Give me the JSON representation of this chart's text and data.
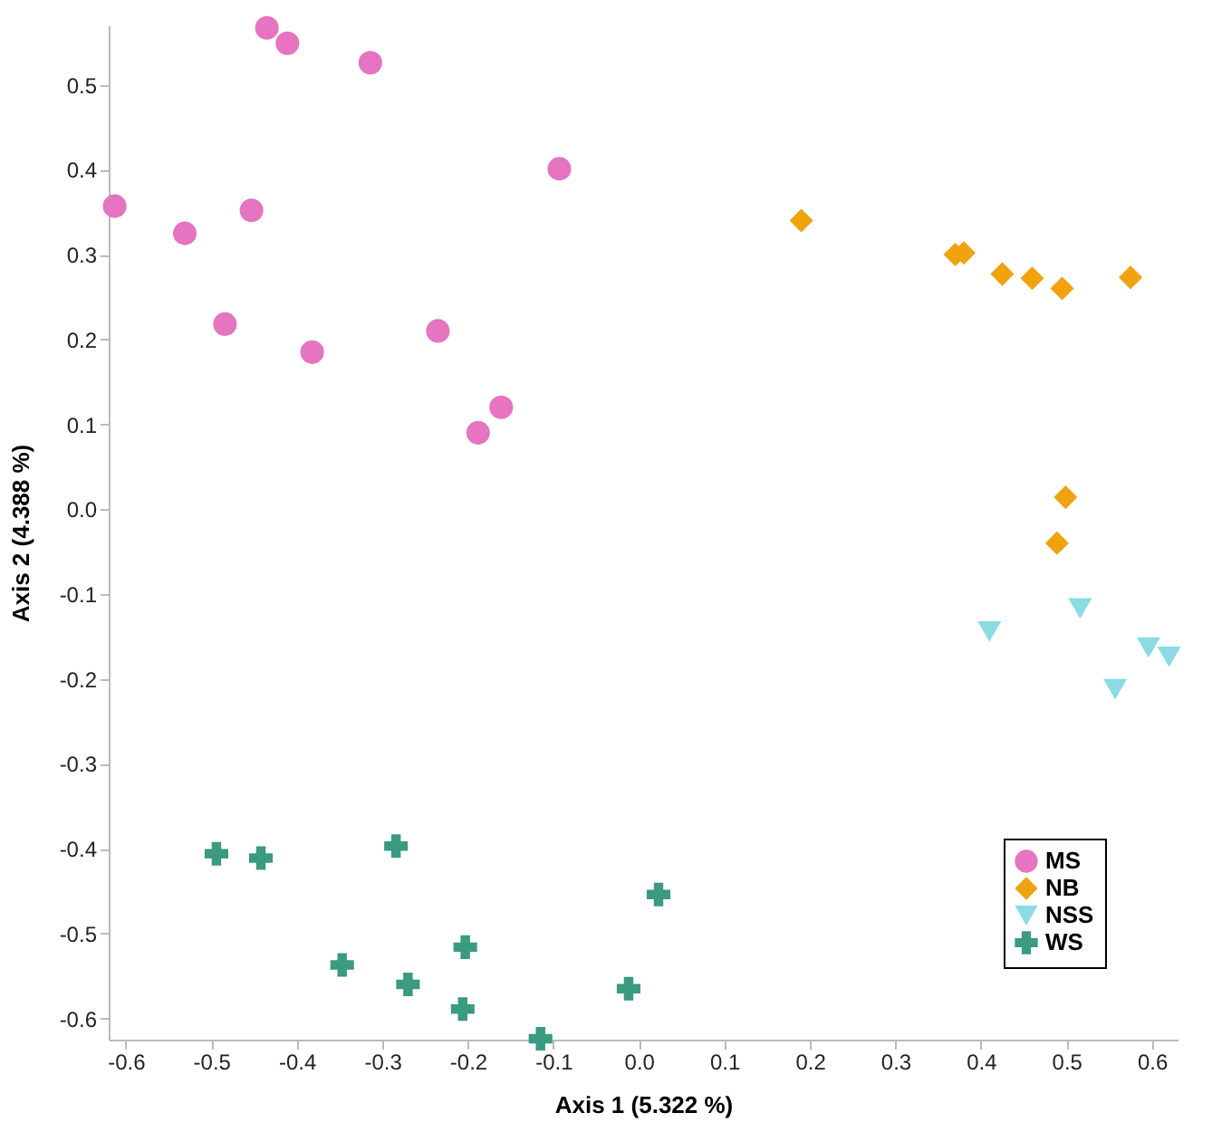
{
  "chart_data": {
    "type": "scatter",
    "xlabel": "Axis 1 (5.322 %)",
    "ylabel": "Axis 2 (4.388 %)",
    "xlim": [
      -0.62,
      0.63
    ],
    "ylim": [
      -0.625,
      0.57
    ],
    "xticks": [
      -0.6,
      -0.5,
      -0.4,
      -0.3,
      -0.2,
      -0.1,
      {
        "value": 0,
        "label": "0.0"
      },
      0.1,
      0.2,
      0.3,
      0.4,
      0.5,
      0.6
    ],
    "yticks": [
      -0.6,
      -0.5,
      -0.4,
      -0.3,
      -0.2,
      -0.1,
      {
        "value": 0,
        "label": "0.0"
      },
      0.1,
      0.2,
      0.3,
      0.4,
      0.5
    ],
    "grid": false,
    "legend": "bottom right",
    "series": [
      {
        "name": "MS",
        "color": "#e674c0",
        "marker": "circle",
        "x": [
          -0.435,
          -0.411,
          -0.314,
          -0.093,
          -0.613,
          -0.531,
          -0.453,
          -0.484,
          -0.382,
          -0.235,
          -0.161,
          -0.188
        ],
        "values": [
          0.567,
          0.549,
          0.526,
          0.401,
          0.357,
          0.325,
          0.352,
          0.218,
          0.185,
          0.21,
          0.12,
          0.09
        ]
      },
      {
        "name": "NB",
        "color": "#f0a30f",
        "marker": "diamond",
        "x": [
          0.19,
          0.37,
          0.38,
          0.425,
          0.46,
          0.495,
          0.575,
          0.499,
          0.489
        ],
        "values": [
          0.34,
          0.3,
          0.302,
          0.277,
          0.272,
          0.26,
          0.273,
          0.014,
          -0.04
        ]
      },
      {
        "name": "NSS",
        "color": "#8adbe3",
        "marker": "triangle",
        "x": [
          0.41,
          0.516,
          0.596,
          0.62,
          0.557
        ],
        "values": [
          -0.144,
          -0.117,
          -0.163,
          -0.174,
          -0.212
        ]
      },
      {
        "name": "WS",
        "color": "#3a9a82",
        "marker": "cross",
        "x": [
          -0.494,
          -0.442,
          -0.284,
          0.023,
          -0.203,
          -0.347,
          -0.27,
          -0.206,
          -0.012,
          -0.115
        ],
        "values": [
          -0.406,
          -0.411,
          -0.397,
          -0.454,
          -0.516,
          -0.537,
          -0.56,
          -0.589,
          -0.565,
          -0.624
        ]
      }
    ]
  }
}
